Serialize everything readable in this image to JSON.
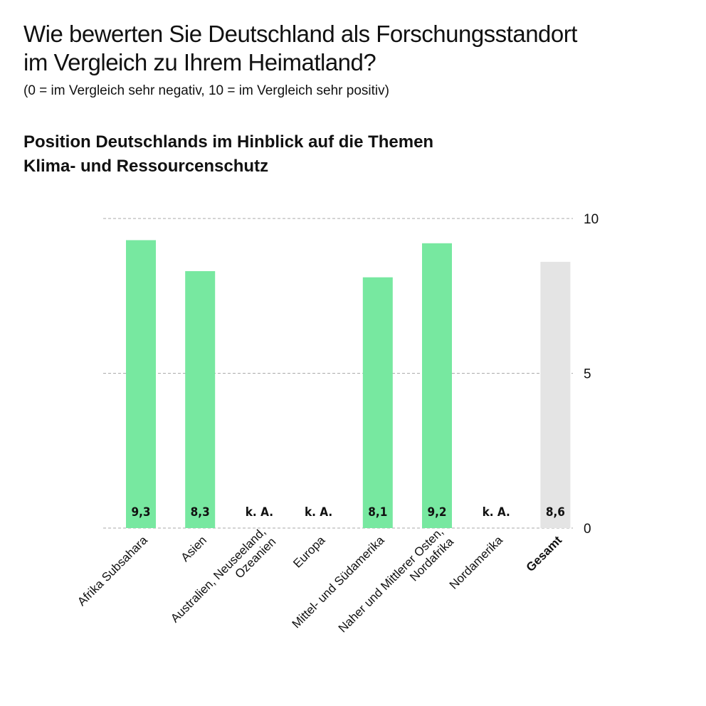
{
  "header": {
    "title_line1": "Wie bewerten Sie Deutschland als Forschungsstandort",
    "title_line2": "im Vergleich zu Ihrem Heimatland?",
    "subtitle": "(0 = im Vergleich sehr negativ, 10 = im Vergleich sehr positiv)"
  },
  "chart_data": {
    "type": "bar",
    "title": "Position Deutschlands im Hinblick auf die Themen Klima- und Ressourcenschutz",
    "title_line1": "Position Deutschlands im Hinblick auf die Themen",
    "title_line2": "Klima- und Ressourcenschutz",
    "categories": [
      [
        "Afrika Subsahara"
      ],
      [
        "Asien"
      ],
      [
        "Australien, Neuseeland,",
        "Ozeanien"
      ],
      [
        "Europa"
      ],
      [
        "Mittel- und Südamerika"
      ],
      [
        "Naher und Mittlerer Osten,",
        "Nordafrika"
      ],
      [
        "Nordamerika"
      ],
      [
        "Gesamt"
      ]
    ],
    "values": [
      9.3,
      8.3,
      null,
      null,
      8.1,
      9.2,
      null,
      8.6
    ],
    "data_labels": [
      "9,3",
      "8,3",
      "k. A.",
      "k. A.",
      "8,1",
      "9,2",
      "k. A.",
      "8,6"
    ],
    "highlight": [
      false,
      false,
      false,
      false,
      false,
      false,
      false,
      true
    ],
    "ylim": [
      0,
      10
    ],
    "yticks": [
      0,
      5,
      10
    ],
    "ytick_labels": [
      "0",
      "5",
      "10"
    ],
    "grid": true,
    "colors": {
      "bar": "#77e8a0",
      "total": "#e4e4e4"
    }
  }
}
